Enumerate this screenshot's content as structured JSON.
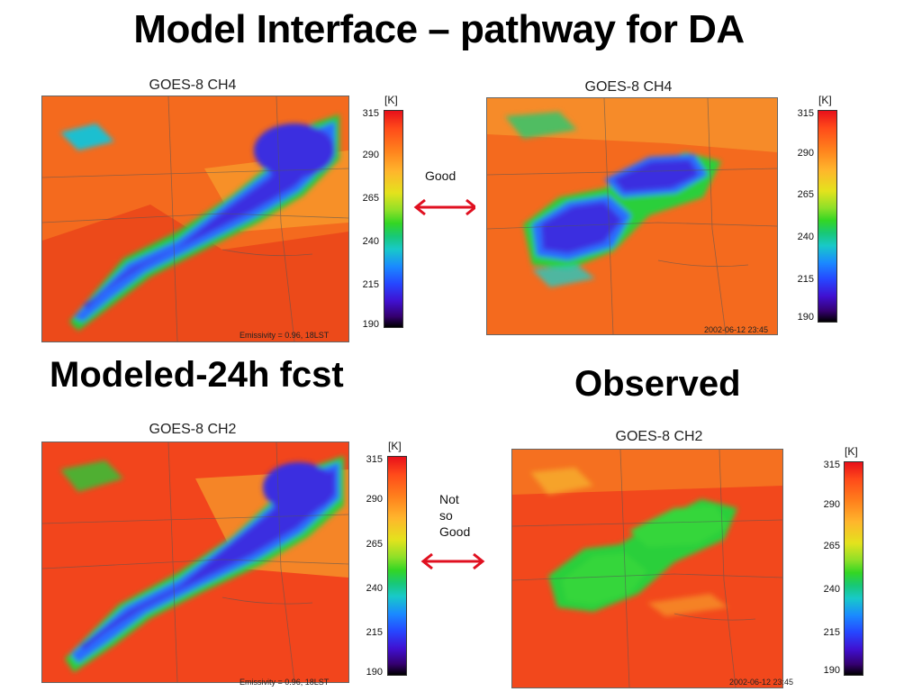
{
  "slide": {
    "title": "Model Interface – pathway for DA",
    "modeled_label": "Modeled-24h fcst",
    "observed_label": "Observed"
  },
  "panels": [
    {
      "id": "model-ch4",
      "title": "GOES-8 CH4",
      "footer": "Emissivity = 0.96, 18LST"
    },
    {
      "id": "obs-ch4",
      "title": "GOES-8 CH4",
      "footer": "2002-06-12 23:45"
    },
    {
      "id": "model-ch2",
      "title": "GOES-8 CH2",
      "footer": "Emissivity = 0.96, 18LST"
    },
    {
      "id": "obs-ch2",
      "title": "GOES-8 CH2",
      "footer": "2002-06-12 23:45"
    }
  ],
  "colorbar": {
    "unit": "[K]",
    "ticks": [
      "315",
      "290",
      "265",
      "240",
      "215",
      "190"
    ]
  },
  "comparisons": {
    "ch4": {
      "line1": "Good"
    },
    "ch2": {
      "line1": "Not",
      "line2": "so",
      "line3": "Good"
    }
  },
  "colors": {
    "warm": "#f2581c",
    "hot": "#e8321a",
    "cloud_blue": "#3a2fe0",
    "cloud_green": "#35d63a",
    "arrow": "#e01020"
  }
}
